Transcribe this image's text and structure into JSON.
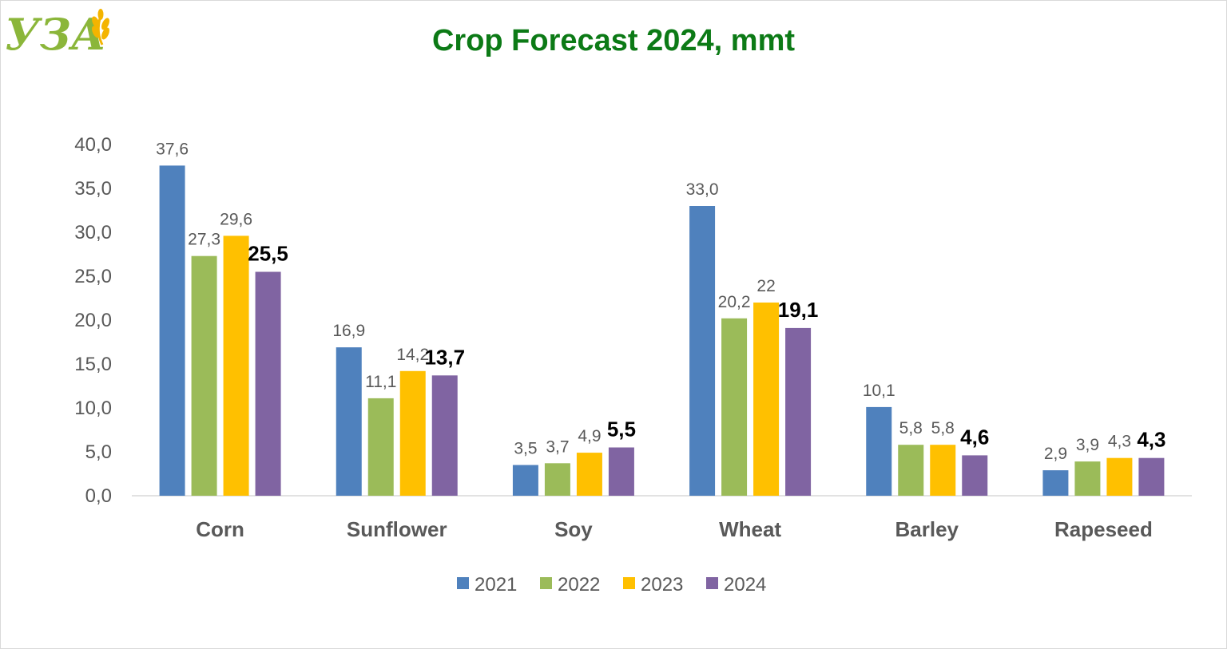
{
  "logo": {
    "text": "УЗА"
  },
  "colors": {
    "2021": "#4f81bd",
    "2022": "#9bbb59",
    "2023": "#ffc000",
    "2024": "#8064a2",
    "title": "#0c7a16"
  },
  "chart_data": {
    "type": "bar",
    "title": "Crop Forecast 2024, mmt",
    "categories": [
      "Corn",
      "Sunflower",
      "Soy",
      "Wheat",
      "Barley",
      "Rapeseed"
    ],
    "series": [
      {
        "name": "2021",
        "values": [
          37.6,
          16.9,
          3.5,
          33.0,
          10.1,
          2.9
        ],
        "labels": [
          "37,6",
          "16,9",
          "3,5",
          "33,0",
          "10,1",
          "2,9"
        ],
        "color": "#4f81bd"
      },
      {
        "name": "2022",
        "values": [
          27.3,
          11.1,
          3.7,
          20.2,
          5.8,
          3.9
        ],
        "labels": [
          "27,3",
          "11,1",
          "3,7",
          "20,2",
          "5,8",
          "3,9"
        ],
        "color": "#9bbb59"
      },
      {
        "name": "2023",
        "values": [
          29.6,
          14.2,
          4.9,
          22.0,
          5.8,
          4.3
        ],
        "labels": [
          "29,6",
          "14,2",
          "4,9",
          "22",
          "5,8",
          "4,3"
        ],
        "color": "#ffc000"
      },
      {
        "name": "2024",
        "values": [
          25.5,
          13.7,
          5.5,
          19.1,
          4.6,
          4.3
        ],
        "labels": [
          "25,5",
          "13,7",
          "5,5",
          "19,1",
          "4,6",
          "4,3"
        ],
        "color": "#8064a2"
      }
    ],
    "ylim": [
      0,
      40
    ],
    "yticks": [
      "0,0",
      "5,0",
      "10,0",
      "15,0",
      "20,0",
      "25,0",
      "30,0",
      "35,0",
      "40,0"
    ],
    "xlabel": "",
    "ylabel": "",
    "grid": false,
    "legend": "bottom"
  }
}
